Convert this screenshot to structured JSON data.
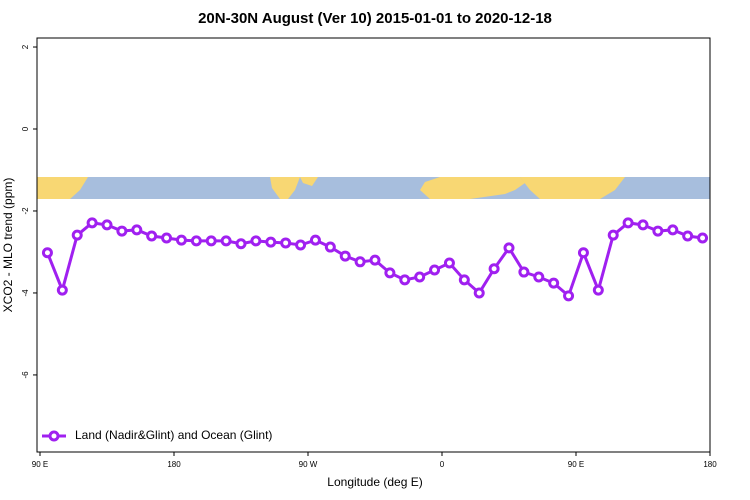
{
  "chart_data": {
    "type": "line",
    "title": "20N-30N August (Ver 10)   2015-01-01 to 2020-12-18",
    "x_label": "Longitude (deg E)",
    "y_label": "XCO2 - MLO trend (ppm)",
    "x": [
      95,
      105,
      115,
      125,
      135,
      145,
      155,
      165,
      175,
      185,
      195,
      205,
      215,
      225,
      235,
      245,
      255,
      265,
      275,
      285,
      295,
      305,
      315,
      325,
      335,
      345,
      355,
      365,
      375,
      385,
      395,
      405,
      415,
      425,
      435,
      445,
      455,
      465,
      475,
      485,
      495,
      505,
      515,
      525,
      535
    ],
    "series": [
      {
        "name": "Land (Nadir&Glint) and Ocean (Glint)",
        "color": "#a020f0",
        "values": [
          -3.02,
          -3.93,
          -2.59,
          -2.29,
          -2.34,
          -2.49,
          -2.46,
          -2.61,
          -2.66,
          -2.71,
          -2.73,
          -2.73,
          -2.73,
          -2.8,
          -2.73,
          -2.76,
          -2.78,
          -2.83,
          -2.71,
          -2.88,
          -3.1,
          -3.24,
          -3.2,
          -3.51,
          -3.68,
          -3.61,
          -3.44,
          -3.27,
          -3.68,
          -4.0,
          -3.41,
          -2.9,
          -3.49,
          -3.61,
          -3.76,
          -4.07,
          -3.02,
          -3.93,
          -2.59,
          -2.29,
          -2.34,
          -2.49,
          -2.46,
          -2.61,
          -2.66
        ]
      }
    ],
    "xlim": [
      90,
      540
    ],
    "xticks": [
      {
        "value": 90,
        "label": "90 E"
      },
      180,
      {
        "value": 270,
        "label": "90 W"
      },
      {
        "value": 360,
        "label": "0"
      },
      {
        "value": 450,
        "label": "90 E"
      },
      {
        "value": 540,
        "label": "180"
      }
    ],
    "ylim": [
      -7.88,
      2.22
    ],
    "yticks": [
      2,
      0,
      -2,
      -4,
      -6
    ],
    "legend": "bottom-left"
  }
}
